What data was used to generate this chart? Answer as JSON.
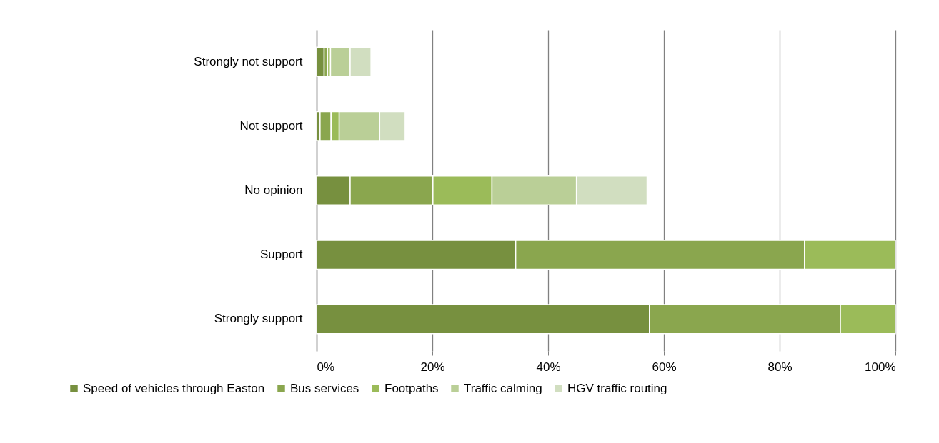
{
  "chart_data": {
    "type": "bar",
    "orientation": "horizontal",
    "stacked": true,
    "categories": [
      "Strongly not support",
      "Not support",
      "No opinion",
      "Support",
      "Strongly support"
    ],
    "series": [
      {
        "name": "Speed of vehicles through Easton",
        "color": "#77903f",
        "values": [
          1.3,
          0.6,
          5.8,
          34.4,
          57.5
        ]
      },
      {
        "name": "Bus services",
        "color": "#8aa64e",
        "values": [
          0.6,
          1.9,
          14.3,
          49.9,
          33.0
        ]
      },
      {
        "name": "Footpaths",
        "color": "#9bbb59",
        "values": [
          0.5,
          1.4,
          10.2,
          15.7,
          9.5
        ]
      },
      {
        "name": "Traffic calming",
        "color": "#bacf97",
        "values": [
          3.4,
          7.0,
          14.6,
          null,
          null
        ]
      },
      {
        "name": "HGV traffic routing",
        "color": "#d1dec0",
        "values": [
          3.6,
          4.4,
          12.2,
          null,
          null
        ]
      }
    ],
    "xlim": [
      0,
      100
    ],
    "xticks": [
      {
        "value": 0,
        "label": "0%"
      },
      {
        "value": 20,
        "label": "20%"
      },
      {
        "value": 40,
        "label": "40%"
      },
      {
        "value": 60,
        "label": "60%"
      },
      {
        "value": 80,
        "label": "80%"
      },
      {
        "value": 100,
        "label": "100%"
      }
    ],
    "grid": "x",
    "legend": "bottom"
  }
}
